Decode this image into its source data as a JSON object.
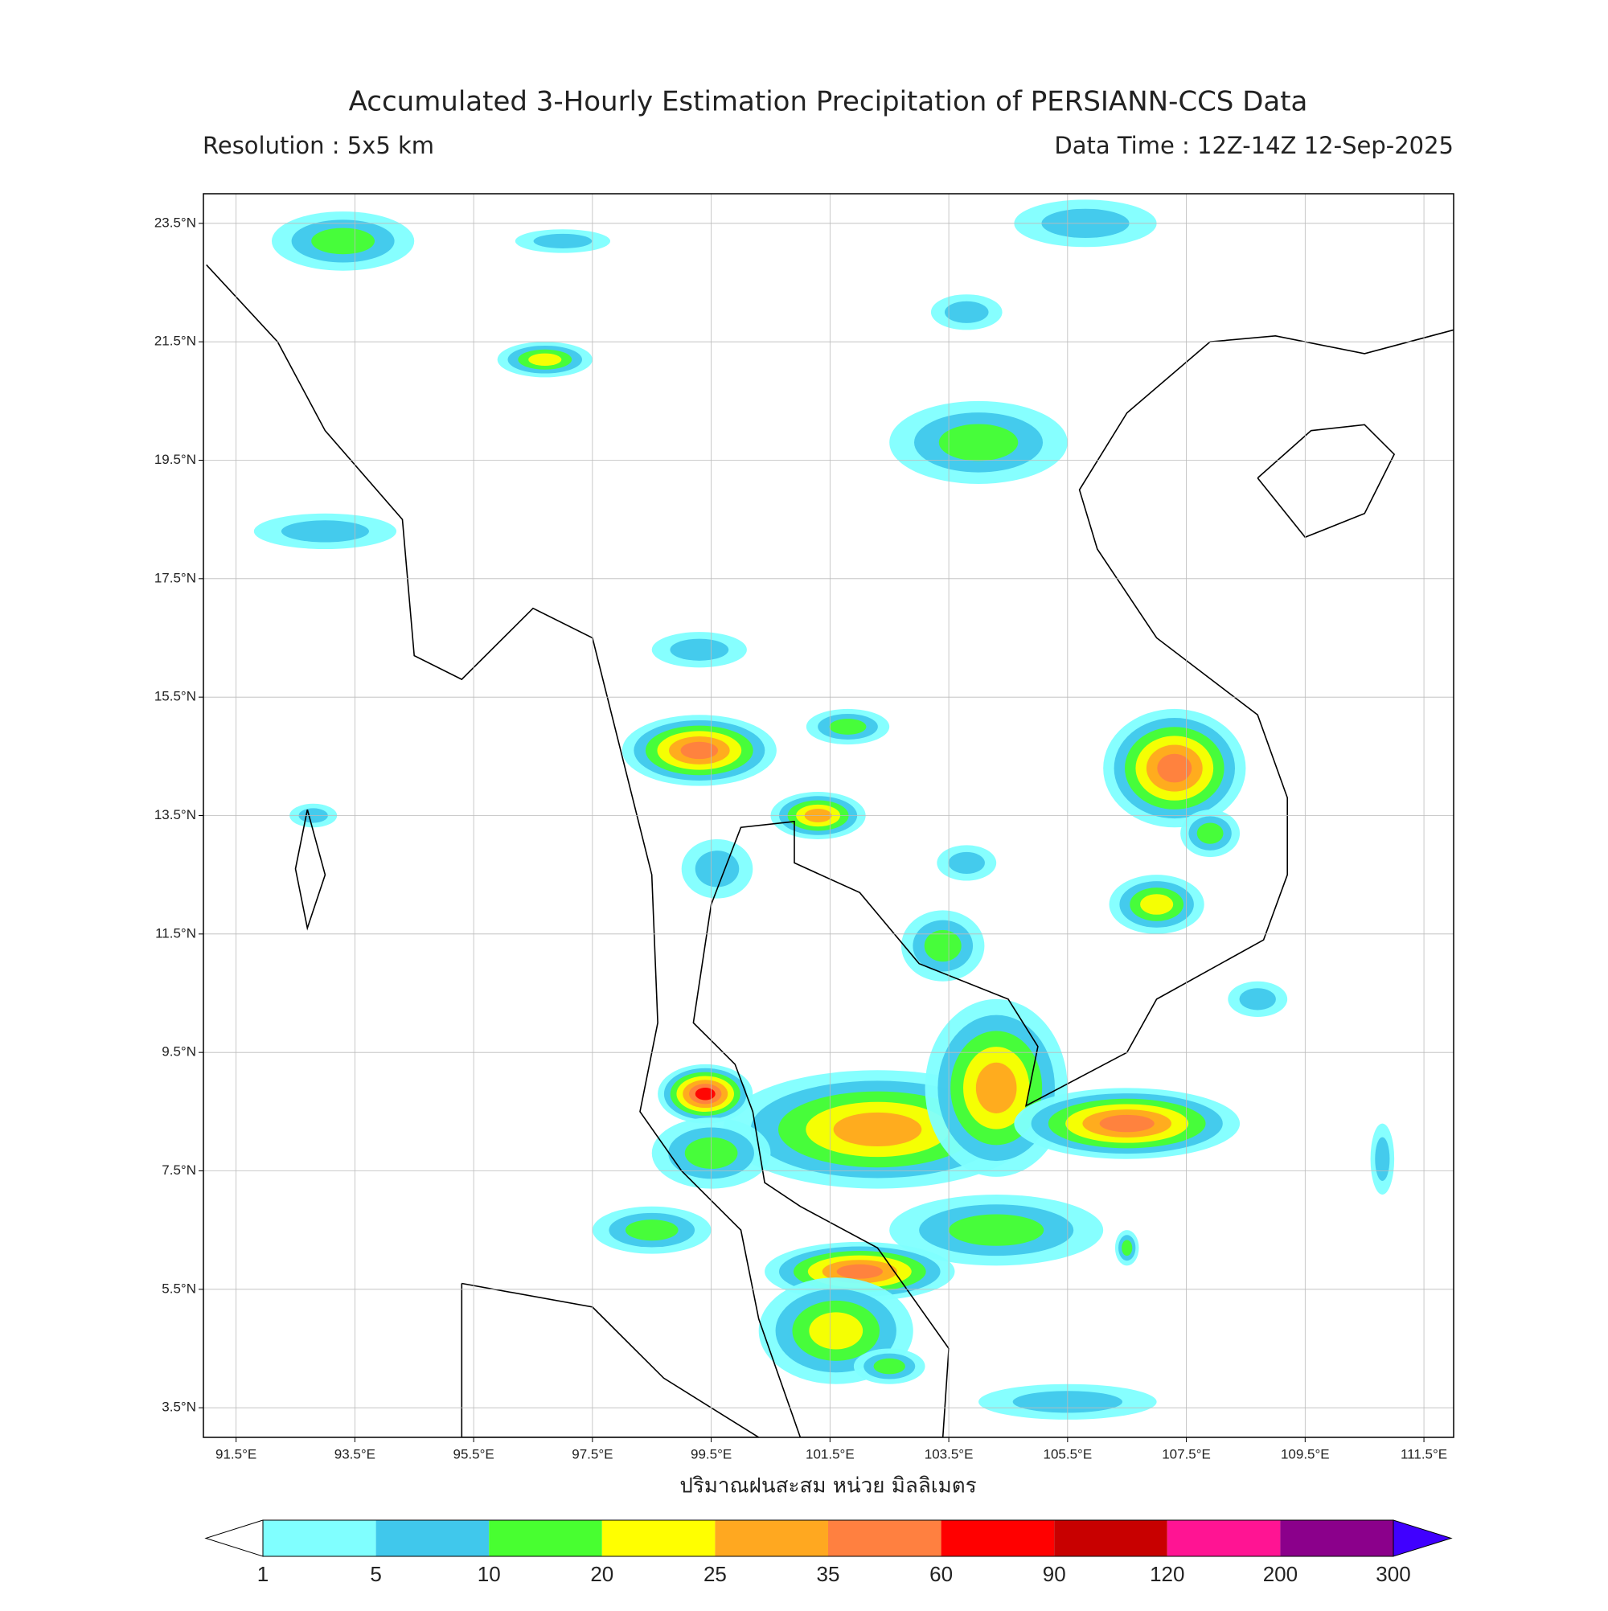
{
  "map": {
    "title": "Accumulated 3-Hourly Estimation Precipitation of PERSIANN-CCS Data",
    "resolution": "Resolution : 5x5 km",
    "data_time": "Data Time : 12Z-14Z 12-Sep-2025",
    "xlabel": "ปริมาณฝนสะสม หน่วย มิลลิเมตร",
    "xlim": [
      90.95,
      112.0
    ],
    "ylim": [
      3.0,
      24.0
    ],
    "xticks": [
      {
        "value": 91.5,
        "label": "91.5°E"
      },
      {
        "value": 93.5,
        "label": "93.5°E"
      },
      {
        "value": 95.5,
        "label": "95.5°E"
      },
      {
        "value": 97.5,
        "label": "97.5°E"
      },
      {
        "value": 99.5,
        "label": "99.5°E"
      },
      {
        "value": 101.5,
        "label": "101.5°E"
      },
      {
        "value": 103.5,
        "label": "103.5°E"
      },
      {
        "value": 105.5,
        "label": "105.5°E"
      },
      {
        "value": 107.5,
        "label": "107.5°E"
      },
      {
        "value": 109.5,
        "label": "109.5°E"
      },
      {
        "value": 111.5,
        "label": "111.5°E"
      }
    ],
    "yticks": [
      {
        "value": 3.5,
        "label": "3.5°N"
      },
      {
        "value": 5.5,
        "label": "5.5°N"
      },
      {
        "value": 7.5,
        "label": "7.5°N"
      },
      {
        "value": 9.5,
        "label": "9.5°N"
      },
      {
        "value": 11.5,
        "label": "11.5°N"
      },
      {
        "value": 13.5,
        "label": "13.5°N"
      },
      {
        "value": 15.5,
        "label": "15.5°N"
      },
      {
        "value": 17.5,
        "label": "17.5°N"
      },
      {
        "value": 19.5,
        "label": "19.5°N"
      },
      {
        "value": 21.5,
        "label": "21.5°N"
      },
      {
        "value": 23.5,
        "label": "23.5°N"
      }
    ],
    "grid": true,
    "colorbar": {
      "levels": [
        1,
        5,
        10,
        20,
        25,
        35,
        60,
        90,
        120,
        200,
        300
      ],
      "colors": [
        "#80ffff",
        "#40c8ec",
        "#48ff30",
        "#ffff00",
        "#ffa820",
        "#ff8040",
        "#ff0000",
        "#c80000",
        "#ff1493",
        "#8b008b"
      ],
      "under_color": "#ffffff",
      "over_color": "#4000ff"
    }
  }
}
